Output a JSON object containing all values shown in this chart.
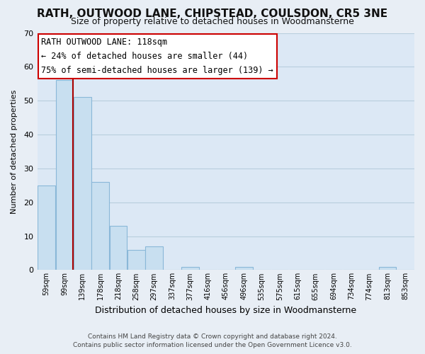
{
  "title": "RATH, OUTWOOD LANE, CHIPSTEAD, COULSDON, CR5 3NE",
  "subtitle": "Size of property relative to detached houses in Woodmansterne",
  "xlabel": "Distribution of detached houses by size in Woodmansterne",
  "ylabel": "Number of detached properties",
  "bin_labels": [
    "59sqm",
    "99sqm",
    "139sqm",
    "178sqm",
    "218sqm",
    "258sqm",
    "297sqm",
    "337sqm",
    "377sqm",
    "416sqm",
    "456sqm",
    "496sqm",
    "535sqm",
    "575sqm",
    "615sqm",
    "655sqm",
    "694sqm",
    "734sqm",
    "774sqm",
    "813sqm",
    "853sqm"
  ],
  "bar_heights": [
    25,
    56,
    51,
    26,
    13,
    6,
    7,
    0,
    1,
    0,
    0,
    1,
    0,
    0,
    0,
    0,
    0,
    0,
    0,
    1,
    0
  ],
  "bar_color": "#c8dff0",
  "bar_edge_color": "#8ab8d8",
  "ylim": [
    0,
    70
  ],
  "yticks": [
    0,
    10,
    20,
    30,
    40,
    50,
    60,
    70
  ],
  "property_line_color": "#aa0000",
  "annotation_title": "RATH OUTWOOD LANE: 118sqm",
  "annotation_line1": "← 24% of detached houses are smaller (44)",
  "annotation_line2": "75% of semi-detached houses are larger (139) →",
  "annotation_box_color": "#ffffff",
  "annotation_box_edge": "#cc0000",
  "footer_line1": "Contains HM Land Registry data © Crown copyright and database right 2024.",
  "footer_line2": "Contains public sector information licensed under the Open Government Licence v3.0.",
  "background_color": "#e8eef5",
  "plot_background_color": "#dce8f5",
  "grid_color": "#b8cede"
}
